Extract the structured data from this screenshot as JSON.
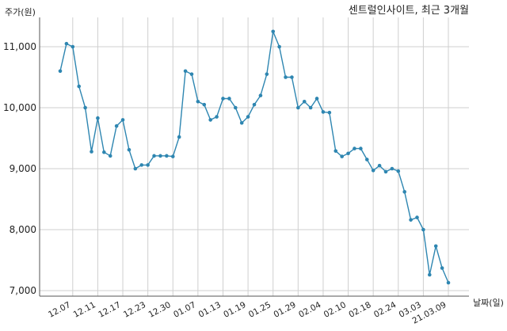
{
  "chart_data": {
    "type": "line",
    "title": "센트럴인사이트, 최근 3개월",
    "ylabel": "주가(원)",
    "xlabel": "날짜(일)",
    "ylim": [
      7000,
      11500
    ],
    "yticks": [
      7000,
      8000,
      9000,
      10000,
      11000
    ],
    "ytick_labels": [
      "7,000",
      "8,000",
      "9,000",
      "10,000",
      "11,000"
    ],
    "grid": true,
    "line_color": "#2e86b1",
    "x_tick_labels": [
      {
        "index": 2,
        "label": "12.07"
      },
      {
        "index": 6,
        "label": "12.11"
      },
      {
        "index": 10,
        "label": "12.17"
      },
      {
        "index": 14,
        "label": "12.23"
      },
      {
        "index": 18,
        "label": "12.30"
      },
      {
        "index": 22,
        "label": "01.07"
      },
      {
        "index": 26,
        "label": "01.13"
      },
      {
        "index": 30,
        "label": "01.19"
      },
      {
        "index": 34,
        "label": "01.25"
      },
      {
        "index": 38,
        "label": "01.29"
      },
      {
        "index": 42,
        "label": "02.04"
      },
      {
        "index": 46,
        "label": "02.10"
      },
      {
        "index": 50,
        "label": "02.18"
      },
      {
        "index": 54,
        "label": "02.24"
      },
      {
        "index": 58,
        "label": "03.03"
      },
      {
        "index": 62,
        "label": "21.03.09"
      }
    ],
    "series": [
      {
        "values": [
          10600,
          11050,
          11000,
          10350,
          10000,
          9280,
          9830,
          9270,
          9210,
          9700,
          9800,
          9310,
          9000,
          9060,
          9060,
          9210,
          9210,
          9210,
          9200,
          9520,
          10600,
          10550,
          10100,
          10050,
          9800,
          9850,
          10150,
          10150,
          10000,
          9750,
          9850,
          10050,
          10200,
          10550,
          11250,
          11000,
          10500,
          10500,
          10000,
          10100,
          10000,
          10150,
          9930,
          9920,
          9290,
          9200,
          9250,
          9330,
          9330,
          9150,
          8970,
          9050,
          8950,
          9000,
          8960,
          8620,
          8160,
          8200,
          8000,
          7260,
          7730,
          7370,
          7130
        ]
      }
    ]
  }
}
